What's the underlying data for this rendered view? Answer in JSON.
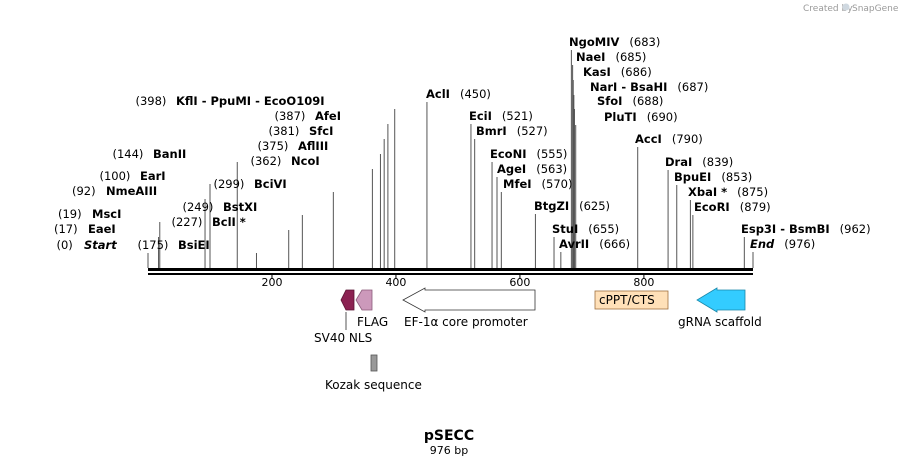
{
  "credit": {
    "text": "Created by",
    "brand": "SnapGene"
  },
  "map": {
    "name": "pSECC",
    "length_label": "976 bp",
    "length_bp": 976
  },
  "ticks": [
    200,
    400,
    600,
    800
  ],
  "sites": [
    {
      "name": "Start",
      "pos": 0,
      "italic": true
    },
    {
      "name": "EaeI",
      "pos": 17
    },
    {
      "name": "MscI",
      "pos": 19
    },
    {
      "name": "NmeAIII",
      "pos": 92
    },
    {
      "name": "EarI",
      "pos": 100
    },
    {
      "name": "BanII",
      "pos": 144
    },
    {
      "name": "BsiEI",
      "pos": 175
    },
    {
      "name": "BclI *",
      "pos": 227
    },
    {
      "name": "BstXI",
      "pos": 249
    },
    {
      "name": "BciVI",
      "pos": 299
    },
    {
      "name": "NcoI",
      "pos": 362
    },
    {
      "name": "AflIII",
      "pos": 375
    },
    {
      "name": "SfcI",
      "pos": 381
    },
    {
      "name": "AfeI",
      "pos": 387
    },
    {
      "name": "KflI - PpuMI - EcoO109I",
      "pos": 398
    },
    {
      "name": "AclI",
      "pos": 450
    },
    {
      "name": "EciI",
      "pos": 521
    },
    {
      "name": "BmrI",
      "pos": 527
    },
    {
      "name": "EcoNI",
      "pos": 555
    },
    {
      "name": "AgeI",
      "pos": 563
    },
    {
      "name": "MfeI",
      "pos": 570
    },
    {
      "name": "BtgZI",
      "pos": 625
    },
    {
      "name": "StuI",
      "pos": 655
    },
    {
      "name": "AvrII",
      "pos": 666
    },
    {
      "name": "NgoMIV",
      "pos": 683
    },
    {
      "name": "NaeI",
      "pos": 685
    },
    {
      "name": "KasI",
      "pos": 686
    },
    {
      "name": "NarI - BsaHI",
      "pos": 687
    },
    {
      "name": "SfoI",
      "pos": 688
    },
    {
      "name": "PluTI",
      "pos": 690
    },
    {
      "name": "AccI",
      "pos": 790
    },
    {
      "name": "DraI",
      "pos": 839
    },
    {
      "name": "BpuEI",
      "pos": 853
    },
    {
      "name": "XbaI *",
      "pos": 875
    },
    {
      "name": "EcoRI",
      "pos": 879
    },
    {
      "name": "Esp3I - BsmBI",
      "pos": 962
    },
    {
      "name": "End",
      "pos": 976,
      "italic": true
    }
  ],
  "features": [
    {
      "name": "SV40 NLS",
      "color": "#8b2252"
    },
    {
      "name": "FLAG",
      "color": "#cc99bb"
    },
    {
      "name": "EF-1α core promoter",
      "color": "#ffffff"
    },
    {
      "name": "cPPT/CTS",
      "color": "#ffe0b8"
    },
    {
      "name": "gRNA scaffold",
      "color": "#33ccff"
    },
    {
      "name": "Kozak sequence",
      "color": "#999999"
    }
  ]
}
